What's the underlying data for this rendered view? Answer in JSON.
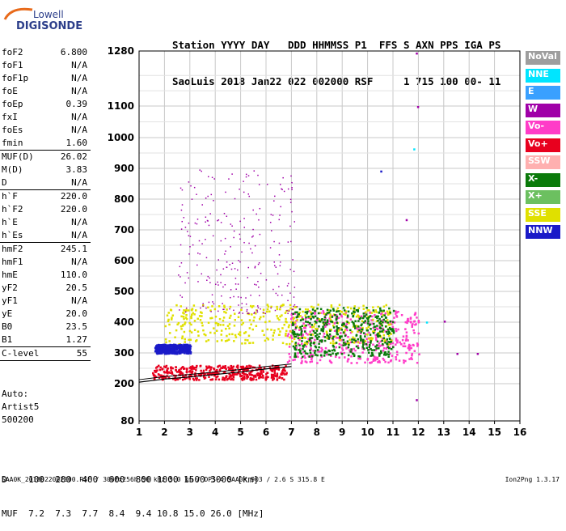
{
  "logo": {
    "line1": "Lowell",
    "line2": "DIGISONDE"
  },
  "header": {
    "line1": "Station YYYY DAY   DDD HHMMSS P1  FFS S AXN PPS IGA PS",
    "line2": "SaoLuis 2018 Jan22 022 002000 RSF     1 715 100 00- 11"
  },
  "parameters": [
    {
      "name": "foF2",
      "value": "6.800"
    },
    {
      "name": "foF1",
      "value": "N/A"
    },
    {
      "name": "foF1p",
      "value": "N/A"
    },
    {
      "name": "foE",
      "value": "N/A"
    },
    {
      "name": "foEp",
      "value": "0.39"
    },
    {
      "name": "fxI",
      "value": "N/A"
    },
    {
      "name": "foEs",
      "value": "N/A"
    },
    {
      "name": "fmin",
      "value": "1.60",
      "sep": true
    },
    {
      "name": "MUF(D)",
      "value": "26.02"
    },
    {
      "name": "M(D)",
      "value": "3.83"
    },
    {
      "name": "D",
      "value": "N/A",
      "sep": true
    },
    {
      "name": "h`F",
      "value": "220.0"
    },
    {
      "name": "h`F2",
      "value": "220.0"
    },
    {
      "name": "h`E",
      "value": "N/A"
    },
    {
      "name": "h`Es",
      "value": "N/A",
      "sep": true
    },
    {
      "name": "hmF2",
      "value": "245.1"
    },
    {
      "name": "hmF1",
      "value": "N/A"
    },
    {
      "name": "hmE",
      "value": "110.0"
    },
    {
      "name": "yF2",
      "value": "20.5"
    },
    {
      "name": "yF1",
      "value": "N/A"
    },
    {
      "name": "yE",
      "value": "20.0"
    },
    {
      "name": "B0",
      "value": "23.5"
    },
    {
      "name": "B1",
      "value": "1.27",
      "sep": true
    },
    {
      "name": "C-level",
      "value": "55",
      "sep": true
    }
  ],
  "auto": {
    "line1": "Auto:",
    "line2": "Artist5",
    "line3": "500200"
  },
  "legend": [
    {
      "label": "NoVal",
      "color": "#9e9e9e"
    },
    {
      "label": "NNE",
      "color": "#00e5ff"
    },
    {
      "label": "E",
      "color": "#3aa0ff"
    },
    {
      "label": "W",
      "color": "#a000a8"
    },
    {
      "label": "Vo-",
      "color": "#ff3cc8"
    },
    {
      "label": "Vo+",
      "color": "#e8001e"
    },
    {
      "label": "SSW",
      "color": "#ffb0b0"
    },
    {
      "label": "X-",
      "color": "#0a7a0a"
    },
    {
      "label": "X+",
      "color": "#6cc060"
    },
    {
      "label": "SSE",
      "color": "#e0e000"
    },
    {
      "label": "NNW",
      "color": "#1a1ac8"
    }
  ],
  "bottom_table": {
    "row1": "D    100  200  400  600  800 1000 1500 3000 [km]",
    "row2": "MUF  7.2  7.3  7.7  8.4  9.4 10.8 15.0 26.0 [MHz]"
  },
  "footer": {
    "left": "SAA0K_2018022002000.RSF / 300fx256h 50 kHz 5.0 km / DPS-4 SAA0K 903 / 2.6 S 315.8 E",
    "right": "Ion2Png 1.3.17"
  },
  "chart_data": {
    "type": "scatter",
    "x_ticks": [
      "1",
      "2",
      "3",
      "4",
      "5",
      "6",
      "7",
      "8",
      "9",
      "10",
      "11",
      "12",
      "13",
      "14",
      "15",
      "16"
    ],
    "y_ticks": [
      "80",
      "200",
      "300",
      "400",
      "500",
      "600",
      "700",
      "800",
      "900",
      "1000",
      "1100",
      "1280"
    ],
    "xlim": [
      1,
      16
    ],
    "ylim": [
      80,
      1280
    ],
    "y_scale": "log-like (ionogram virtual height)",
    "grid": true,
    "trace_profile": {
      "x": [
        1.0,
        2.0,
        3.0,
        4.0,
        5.0,
        6.0,
        6.5,
        7.0
      ],
      "y": [
        205,
        215,
        222,
        230,
        238,
        248,
        252,
        256
      ]
    },
    "clusters": [
      {
        "series": "Vo+",
        "x": [
          1.5,
          6.8
        ],
        "y": [
          215,
          262
        ]
      },
      {
        "series": "Vo-",
        "x": [
          6.8,
          12.0
        ],
        "y": [
          270,
          440
        ]
      },
      {
        "series": "SSE",
        "x": [
          2.0,
          11.0
        ],
        "y": [
          330,
          460
        ]
      },
      {
        "series": "W",
        "x": [
          2.5,
          7.2
        ],
        "y": [
          430,
          900
        ]
      },
      {
        "series": "NNW",
        "x": [
          1.6,
          3.0
        ],
        "y": [
          300,
          330
        ]
      },
      {
        "series": "X-",
        "x": [
          7.0,
          11.0
        ],
        "y": [
          290,
          450
        ]
      }
    ]
  }
}
